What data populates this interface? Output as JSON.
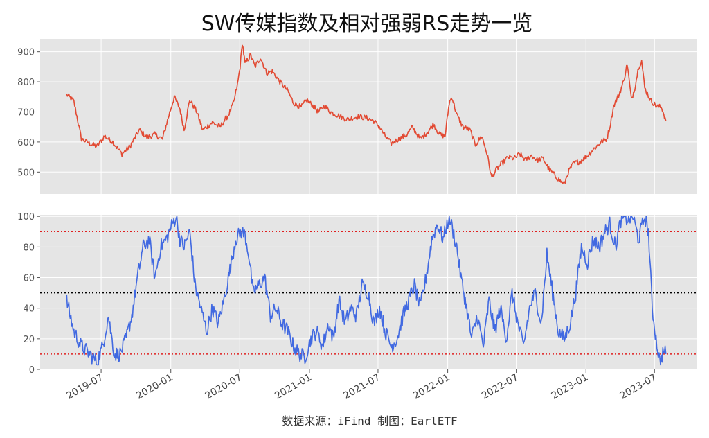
{
  "title": "SW传媒指数及相对强弱RS走势一览",
  "source": "数据来源：iFind 制图：EarlETF",
  "colors": {
    "background": "#E5E5E5",
    "grid": "#FFFFFF",
    "index_line": "#E24A33",
    "rs_line": "#4169E1",
    "ref_red": "#E02020",
    "ref_black": "#000000"
  },
  "chart_data": [
    {
      "type": "line",
      "name": "SW传媒指数",
      "xlim": [
        "2019-01-21",
        "2023-10-20"
      ],
      "ylim": [
        427,
        943
      ],
      "yticks": [
        500,
        600,
        700,
        800,
        900
      ],
      "grid": true,
      "anchors": [
        [
          "2019-04-01",
          758
        ],
        [
          "2019-04-20",
          735
        ],
        [
          "2019-05-10",
          610
        ],
        [
          "2019-06-01",
          595
        ],
        [
          "2019-06-20",
          585
        ],
        [
          "2019-07-10",
          620
        ],
        [
          "2019-08-01",
          600
        ],
        [
          "2019-08-25",
          560
        ],
        [
          "2019-09-15",
          585
        ],
        [
          "2019-10-10",
          640
        ],
        [
          "2019-10-30",
          615
        ],
        [
          "2019-11-20",
          625
        ],
        [
          "2019-12-10",
          610
        ],
        [
          "2019-12-25",
          680
        ],
        [
          "2020-01-10",
          750
        ],
        [
          "2020-01-25",
          710
        ],
        [
          "2020-02-05",
          640
        ],
        [
          "2020-02-20",
          740
        ],
        [
          "2020-03-10",
          700
        ],
        [
          "2020-03-25",
          640
        ],
        [
          "2020-04-20",
          665
        ],
        [
          "2020-05-10",
          650
        ],
        [
          "2020-06-01",
          690
        ],
        [
          "2020-06-15",
          730
        ],
        [
          "2020-06-25",
          790
        ],
        [
          "2020-07-02",
          850
        ],
        [
          "2020-07-08",
          930
        ],
        [
          "2020-07-15",
          860
        ],
        [
          "2020-07-30",
          890
        ],
        [
          "2020-08-10",
          850
        ],
        [
          "2020-08-25",
          880
        ],
        [
          "2020-09-10",
          830
        ],
        [
          "2020-09-25",
          835
        ],
        [
          "2020-10-15",
          800
        ],
        [
          "2020-11-05",
          770
        ],
        [
          "2020-11-20",
          730
        ],
        [
          "2020-12-10",
          715
        ],
        [
          "2020-12-25",
          740
        ],
        [
          "2021-01-10",
          720
        ],
        [
          "2021-01-25",
          700
        ],
        [
          "2021-02-10",
          720
        ],
        [
          "2021-02-25",
          700
        ],
        [
          "2021-03-15",
          690
        ],
        [
          "2021-04-10",
          675
        ],
        [
          "2021-05-10",
          685
        ],
        [
          "2021-06-01",
          680
        ],
        [
          "2021-06-20",
          670
        ],
        [
          "2021-07-05",
          650
        ],
        [
          "2021-07-20",
          620
        ],
        [
          "2021-08-05",
          595
        ],
        [
          "2021-08-25",
          610
        ],
        [
          "2021-09-15",
          625
        ],
        [
          "2021-09-30",
          650
        ],
        [
          "2021-10-20",
          610
        ],
        [
          "2021-11-10",
          635
        ],
        [
          "2021-11-25",
          660
        ],
        [
          "2021-12-10",
          625
        ],
        [
          "2021-12-25",
          620
        ],
        [
          "2022-01-05",
          730
        ],
        [
          "2022-01-12",
          750
        ],
        [
          "2022-01-25",
          690
        ],
        [
          "2022-02-10",
          650
        ],
        [
          "2022-03-01",
          640
        ],
        [
          "2022-03-15",
          590
        ],
        [
          "2022-04-01",
          620
        ],
        [
          "2022-04-15",
          560
        ],
        [
          "2022-04-27",
          480
        ],
        [
          "2022-05-10",
          510
        ],
        [
          "2022-05-25",
          530
        ],
        [
          "2022-06-10",
          550
        ],
        [
          "2022-06-25",
          545
        ],
        [
          "2022-07-10",
          560
        ],
        [
          "2022-07-25",
          540
        ],
        [
          "2022-08-10",
          555
        ],
        [
          "2022-08-25",
          540
        ],
        [
          "2022-09-10",
          545
        ],
        [
          "2022-09-25",
          510
        ],
        [
          "2022-10-10",
          490
        ],
        [
          "2022-10-25",
          470
        ],
        [
          "2022-11-05",
          460
        ],
        [
          "2022-11-15",
          500
        ],
        [
          "2022-11-30",
          530
        ],
        [
          "2022-12-15",
          535
        ],
        [
          "2023-01-01",
          550
        ],
        [
          "2023-01-20",
          575
        ],
        [
          "2023-02-10",
          600
        ],
        [
          "2023-02-25",
          610
        ],
        [
          "2023-03-05",
          650
        ],
        [
          "2023-03-15",
          720
        ],
        [
          "2023-03-30",
          760
        ],
        [
          "2023-04-10",
          800
        ],
        [
          "2023-04-20",
          860
        ],
        [
          "2023-05-01",
          740
        ],
        [
          "2023-05-10",
          780
        ],
        [
          "2023-05-20",
          850
        ],
        [
          "2023-05-28",
          870
        ],
        [
          "2023-06-05",
          780
        ],
        [
          "2023-06-20",
          740
        ],
        [
          "2023-07-05",
          720
        ],
        [
          "2023-07-20",
          715
        ],
        [
          "2023-07-31",
          670
        ]
      ]
    },
    {
      "type": "line",
      "name": "相对强弱RS",
      "xlim": [
        "2019-01-21",
        "2023-10-20"
      ],
      "ylim": [
        0,
        101
      ],
      "yticks": [
        0,
        20,
        40,
        60,
        80,
        100
      ],
      "grid": true,
      "reference_lines": [
        {
          "y": 90,
          "color": "red",
          "style": "dotted"
        },
        {
          "y": 50,
          "color": "black",
          "style": "dotted"
        },
        {
          "y": 10,
          "color": "red",
          "style": "dotted"
        }
      ],
      "xticks": [
        "2019-07",
        "2020-01",
        "2020-07",
        "2021-01",
        "2021-07",
        "2022-01",
        "2022-07",
        "2023-01",
        "2023-07"
      ],
      "anchors": [
        [
          "2019-04-01",
          45
        ],
        [
          "2019-04-20",
          25
        ],
        [
          "2019-05-10",
          15
        ],
        [
          "2019-06-01",
          10
        ],
        [
          "2019-06-20",
          5
        ],
        [
          "2019-07-05",
          15
        ],
        [
          "2019-07-20",
          35
        ],
        [
          "2019-08-05",
          10
        ],
        [
          "2019-08-20",
          10
        ],
        [
          "2019-09-05",
          20
        ],
        [
          "2019-09-20",
          35
        ],
        [
          "2019-10-05",
          60
        ],
        [
          "2019-10-20",
          80
        ],
        [
          "2019-11-05",
          85
        ],
        [
          "2019-11-20",
          60
        ],
        [
          "2019-12-05",
          80
        ],
        [
          "2019-12-20",
          85
        ],
        [
          "2020-01-05",
          95
        ],
        [
          "2020-01-15",
          100
        ],
        [
          "2020-01-25",
          85
        ],
        [
          "2020-02-05",
          80
        ],
        [
          "2020-02-20",
          90
        ],
        [
          "2020-03-05",
          55
        ],
        [
          "2020-03-20",
          40
        ],
        [
          "2020-04-05",
          25
        ],
        [
          "2020-04-20",
          40
        ],
        [
          "2020-05-05",
          30
        ],
        [
          "2020-05-20",
          45
        ],
        [
          "2020-06-05",
          65
        ],
        [
          "2020-06-20",
          85
        ],
        [
          "2020-07-05",
          90
        ],
        [
          "2020-07-15",
          88
        ],
        [
          "2020-07-25",
          75
        ],
        [
          "2020-08-05",
          50
        ],
        [
          "2020-08-20",
          55
        ],
        [
          "2020-09-05",
          60
        ],
        [
          "2020-09-20",
          35
        ],
        [
          "2020-10-05",
          40
        ],
        [
          "2020-10-20",
          30
        ],
        [
          "2020-11-05",
          25
        ],
        [
          "2020-11-20",
          15
        ],
        [
          "2020-12-05",
          10
        ],
        [
          "2020-12-20",
          8
        ],
        [
          "2021-01-05",
          20
        ],
        [
          "2021-01-20",
          25
        ],
        [
          "2021-02-05",
          15
        ],
        [
          "2021-02-20",
          30
        ],
        [
          "2021-03-05",
          20
        ],
        [
          "2021-03-20",
          45
        ],
        [
          "2021-04-05",
          30
        ],
        [
          "2021-04-20",
          40
        ],
        [
          "2021-05-05",
          35
        ],
        [
          "2021-05-20",
          55
        ],
        [
          "2021-06-05",
          50
        ],
        [
          "2021-06-20",
          30
        ],
        [
          "2021-07-05",
          40
        ],
        [
          "2021-07-20",
          25
        ],
        [
          "2021-08-05",
          15
        ],
        [
          "2021-08-20",
          20
        ],
        [
          "2021-09-05",
          35
        ],
        [
          "2021-09-20",
          45
        ],
        [
          "2021-10-05",
          55
        ],
        [
          "2021-10-20",
          40
        ],
        [
          "2021-11-05",
          60
        ],
        [
          "2021-11-20",
          85
        ],
        [
          "2021-12-05",
          95
        ],
        [
          "2021-12-20",
          85
        ],
        [
          "2022-01-05",
          100
        ],
        [
          "2022-01-15",
          90
        ],
        [
          "2022-01-25",
          80
        ],
        [
          "2022-02-05",
          60
        ],
        [
          "2022-02-20",
          40
        ],
        [
          "2022-03-05",
          20
        ],
        [
          "2022-03-20",
          35
        ],
        [
          "2022-04-05",
          15
        ],
        [
          "2022-04-20",
          45
        ],
        [
          "2022-05-05",
          25
        ],
        [
          "2022-05-20",
          40
        ],
        [
          "2022-06-05",
          20
        ],
        [
          "2022-06-20",
          50
        ],
        [
          "2022-07-05",
          30
        ],
        [
          "2022-07-20",
          15
        ],
        [
          "2022-08-05",
          40
        ],
        [
          "2022-08-20",
          50
        ],
        [
          "2022-09-05",
          30
        ],
        [
          "2022-09-20",
          75
        ],
        [
          "2022-10-05",
          50
        ],
        [
          "2022-10-20",
          25
        ],
        [
          "2022-11-05",
          20
        ],
        [
          "2022-11-20",
          30
        ],
        [
          "2022-12-05",
          50
        ],
        [
          "2022-12-20",
          80
        ],
        [
          "2023-01-05",
          70
        ],
        [
          "2023-01-20",
          85
        ],
        [
          "2023-02-05",
          80
        ],
        [
          "2023-02-20",
          90
        ],
        [
          "2023-03-05",
          95
        ],
        [
          "2023-03-20",
          80
        ],
        [
          "2023-04-05",
          100
        ],
        [
          "2023-04-20",
          98
        ],
        [
          "2023-05-05",
          100
        ],
        [
          "2023-05-20",
          85
        ],
        [
          "2023-06-05",
          100
        ],
        [
          "2023-06-15",
          90
        ],
        [
          "2023-06-25",
          40
        ],
        [
          "2023-07-05",
          20
        ],
        [
          "2023-07-15",
          5
        ],
        [
          "2023-07-25",
          12
        ],
        [
          "2023-07-31",
          10
        ]
      ]
    }
  ]
}
